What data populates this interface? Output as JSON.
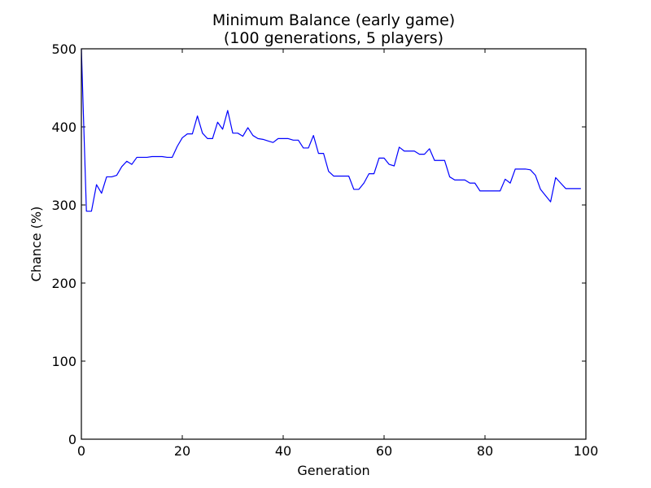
{
  "chart_data": {
    "type": "line",
    "title_line1": "Minimum Balance (early game)",
    "title_line2": "(100 generations, 5 players)",
    "xlabel": "Generation",
    "ylabel": "Chance (%)",
    "xlim": [
      0,
      100
    ],
    "ylim": [
      0,
      500
    ],
    "grid": false,
    "xticks": [
      0,
      20,
      40,
      60,
      80,
      100
    ],
    "yticks": [
      0,
      100,
      200,
      300,
      400,
      500
    ],
    "xtick_labels": [
      "0",
      "20",
      "40",
      "60",
      "80",
      "100"
    ],
    "ytick_labels": [
      "0",
      "100",
      "200",
      "300",
      "400",
      "500"
    ],
    "series": [
      {
        "color": "#0000ff",
        "x": [
          0,
          1,
          2,
          3,
          4,
          5,
          6,
          7,
          8,
          9,
          10,
          11,
          12,
          13,
          14,
          15,
          16,
          17,
          18,
          19,
          20,
          21,
          22,
          23,
          24,
          25,
          26,
          27,
          28,
          29,
          30,
          31,
          32,
          33,
          34,
          35,
          36,
          37,
          38,
          39,
          40,
          41,
          42,
          43,
          44,
          45,
          46,
          47,
          48,
          49,
          50,
          51,
          52,
          53,
          54,
          55,
          56,
          57,
          58,
          59,
          60,
          61,
          62,
          63,
          64,
          65,
          66,
          67,
          68,
          69,
          70,
          71,
          72,
          73,
          74,
          75,
          76,
          77,
          78,
          79,
          80,
          81,
          82,
          83,
          84,
          85,
          86,
          87,
          88,
          89,
          90,
          91,
          92,
          93,
          94,
          95,
          96,
          97,
          98,
          99
        ],
        "y": [
          500,
          292,
          292,
          326,
          315,
          336,
          336,
          338,
          349,
          356,
          352,
          361,
          361,
          361,
          362,
          362,
          362,
          361,
          361,
          375,
          386,
          391,
          391,
          414,
          392,
          385,
          385,
          406,
          397,
          421,
          392,
          392,
          388,
          399,
          389,
          385,
          384,
          382,
          380,
          385,
          385,
          385,
          383,
          383,
          373,
          373,
          389,
          366,
          366,
          343,
          337,
          337,
          337,
          337,
          320,
          320,
          328,
          340,
          340,
          360,
          360,
          352,
          350,
          374,
          369,
          369,
          369,
          365,
          365,
          372,
          357,
          357,
          357,
          336,
          332,
          332,
          332,
          328,
          328,
          318,
          318,
          318,
          318,
          318,
          333,
          328,
          346,
          346,
          346,
          345,
          338,
          320,
          312,
          304,
          335,
          328,
          321,
          321,
          321,
          321
        ]
      }
    ]
  }
}
